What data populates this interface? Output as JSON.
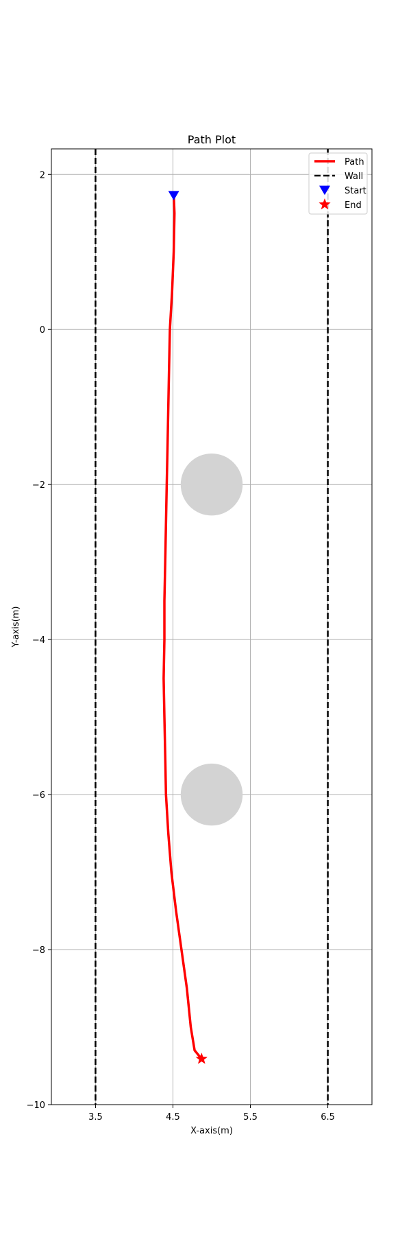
{
  "chart_data": {
    "type": "line",
    "title": "Path Plot",
    "xlabel": "X-axis(m)",
    "ylabel": "Y-axis(m)",
    "xlim": [
      2.93,
      7.07
    ],
    "ylim": [
      -10.0,
      2.33
    ],
    "xticks": [
      3.5,
      4.5,
      5.5,
      6.5
    ],
    "xtick_labels": [
      "3.5",
      "4.5",
      "5.5",
      "6.5"
    ],
    "yticks": [
      2,
      0,
      -2,
      -4,
      -6,
      -8,
      -10
    ],
    "ytick_labels": [
      "2",
      "0",
      "−2",
      "−4",
      "−6",
      "−8",
      "−10"
    ],
    "grid": true,
    "legend_position": "top-right",
    "legend": [
      {
        "label": "Path",
        "kind": "line",
        "color": "#ff0000"
      },
      {
        "label": "Wall",
        "kind": "dashed",
        "color": "#000000"
      },
      {
        "label": "Start",
        "kind": "triangle",
        "color": "#0000ff"
      },
      {
        "label": "End",
        "kind": "star",
        "color": "#ff0000"
      }
    ],
    "series": [
      {
        "name": "Path",
        "color": "#ff0000",
        "points": [
          [
            4.51,
            1.75
          ],
          [
            4.52,
            1.5
          ],
          [
            4.51,
            1.0
          ],
          [
            4.49,
            0.5
          ],
          [
            4.46,
            0.0
          ],
          [
            4.45,
            -0.5
          ],
          [
            4.44,
            -1.0
          ],
          [
            4.43,
            -1.5
          ],
          [
            4.42,
            -2.0
          ],
          [
            4.41,
            -2.5
          ],
          [
            4.4,
            -3.0
          ],
          [
            4.39,
            -3.5
          ],
          [
            4.39,
            -4.0
          ],
          [
            4.38,
            -4.5
          ],
          [
            4.39,
            -5.0
          ],
          [
            4.4,
            -5.5
          ],
          [
            4.41,
            -6.0
          ],
          [
            4.44,
            -6.5
          ],
          [
            4.48,
            -7.0
          ],
          [
            4.54,
            -7.5
          ],
          [
            4.61,
            -8.0
          ],
          [
            4.68,
            -8.5
          ],
          [
            4.73,
            -9.0
          ],
          [
            4.78,
            -9.3
          ],
          [
            4.87,
            -9.41
          ]
        ]
      }
    ],
    "walls": [
      3.5,
      6.5
    ],
    "obstacles": [
      {
        "x": 5.0,
        "y": -2.0,
        "r": 0.4
      },
      {
        "x": 5.0,
        "y": -6.0,
        "r": 0.4
      }
    ],
    "start": {
      "x": 4.51,
      "y": 1.73
    },
    "end": {
      "x": 4.87,
      "y": -9.41
    },
    "colors": {
      "path": "#ff0000",
      "wall": "#000000",
      "start": "#0000ff",
      "end": "#ff0000",
      "obstacle": "#d3d3d3",
      "grid": "#b0b0b0"
    }
  }
}
